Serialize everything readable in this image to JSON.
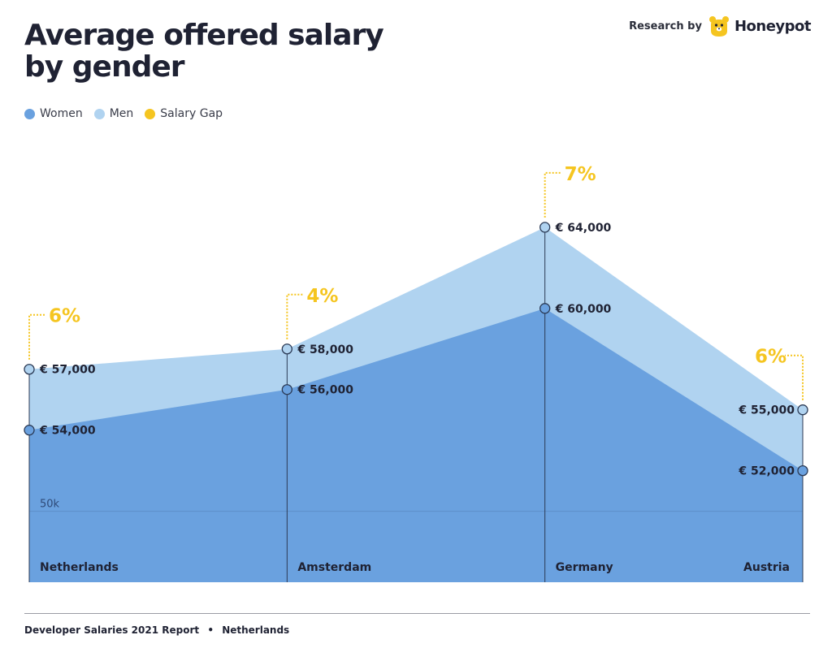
{
  "header": {
    "title_line1": "Average offered salary",
    "title_line2": "by gender",
    "brand_prefix": "Research by",
    "brand_name": "Honeypot",
    "brand_logo_icon": "honeypot-bear-icon"
  },
  "legend": [
    {
      "label": "Women",
      "color": "#6aa1df"
    },
    {
      "label": "Men",
      "color": "#b0d3f0"
    },
    {
      "label": "Salary Gap",
      "color": "#f5c520"
    }
  ],
  "chart_data": {
    "type": "area",
    "title": "Average offered salary by gender",
    "categories": [
      "Netherlands",
      "Amsterdam",
      "Germany",
      "Austria"
    ],
    "series": [
      {
        "name": "Women",
        "color": "#6aa1df",
        "values": [
          54000,
          56000,
          60000,
          52000
        ],
        "labels": [
          "€ 54,000",
          "€ 56,000",
          "€ 60,000",
          "€ 52,000"
        ]
      },
      {
        "name": "Men",
        "color": "#b0d3f0",
        "values": [
          57000,
          58000,
          64000,
          55000
        ],
        "labels": [
          "€ 57,000",
          "€ 58,000",
          "€ 64,000",
          "€ 55,000"
        ]
      }
    ],
    "salary_gap": {
      "color": "#f5c520",
      "labels": [
        "6%",
        "4%",
        "7%",
        "6%"
      ]
    },
    "ylim": [
      46500,
      68000
    ],
    "gridline": {
      "value": 50000,
      "label": "50k"
    }
  },
  "footer": {
    "report": "Developer Salaries 2021 Report",
    "separator": "•",
    "country": "Netherlands"
  }
}
